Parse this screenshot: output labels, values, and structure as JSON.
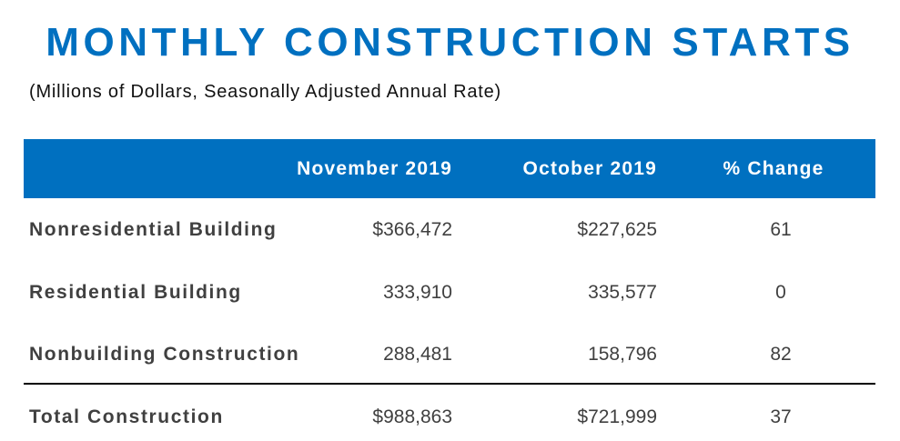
{
  "title": "MONTHLY CONSTRUCTION STARTS",
  "subtitle": "(Millions of Dollars, Seasonally Adjusted Annual Rate)",
  "headers": [
    "November 2019",
    "October 2019",
    "% Change"
  ],
  "rows": [
    {
      "label": "Nonresidential Building",
      "nov": "$366,472",
      "oct": "$227,625",
      "pct": "61"
    },
    {
      "label": "Residential Building",
      "nov": "333,910",
      "oct": "335,577",
      "pct": "0"
    },
    {
      "label": "Nonbuilding Construction",
      "nov": "288,481",
      "oct": "158,796",
      "pct": "82"
    },
    {
      "label": "Total Construction",
      "nov": "$988,863",
      "oct": "$721,999",
      "pct": "37"
    }
  ],
  "colors": {
    "accent": "#0070C0",
    "text": "#404040"
  }
}
